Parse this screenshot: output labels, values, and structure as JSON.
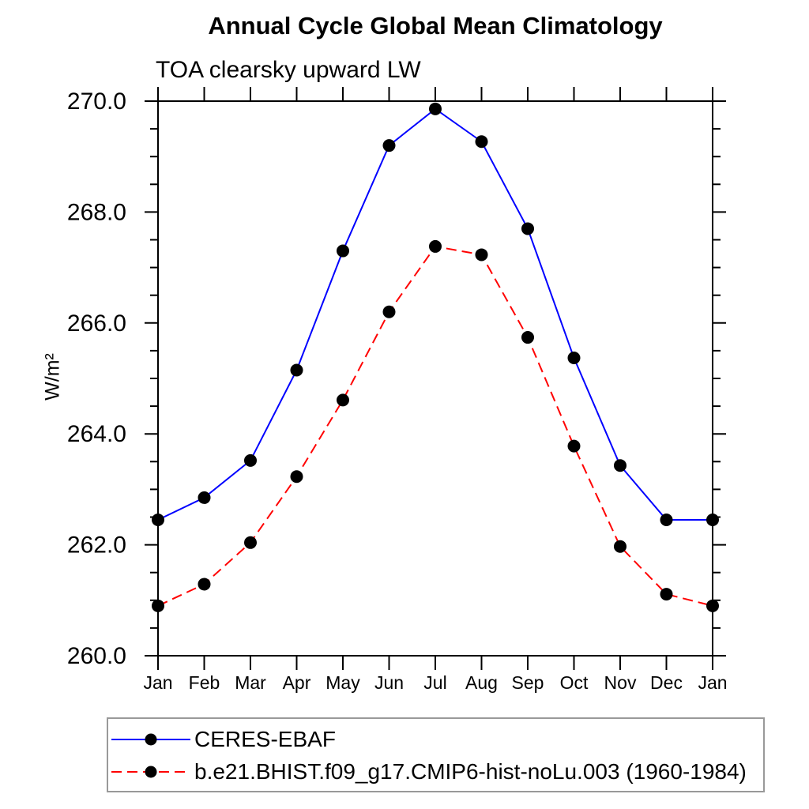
{
  "title": "Annual Cycle Global Mean Climatology",
  "subtitle": "TOA clearsky upward LW",
  "ylabel": "W/m²",
  "chart_data": {
    "type": "line",
    "title": "Annual Cycle Global Mean Climatology",
    "subtitle": "TOA clearsky upward LW",
    "ylabel": "W/m²",
    "categories": [
      "Jan",
      "Feb",
      "Mar",
      "Apr",
      "May",
      "Jun",
      "Jul",
      "Aug",
      "Sep",
      "Oct",
      "Nov",
      "Dec",
      "Jan"
    ],
    "ylim": [
      260.0,
      270.0
    ],
    "ytick_major": [
      260.0,
      262.0,
      264.0,
      266.0,
      268.0,
      270.0
    ],
    "ytick_major_labels": [
      "260.0",
      "262.0",
      "264.0",
      "266.0",
      "268.0",
      "270.0"
    ],
    "ytick_minor_step": 0.5,
    "grid": false,
    "legend_position": "bottom",
    "axis_color": "#000000",
    "series": [
      {
        "name": "CERES-EBAF",
        "color": "#0000ff",
        "line_style": "solid",
        "marker": "circle",
        "marker_color": "#000000",
        "values": [
          262.45,
          262.85,
          263.52,
          265.15,
          267.3,
          269.2,
          269.86,
          269.27,
          267.7,
          265.37,
          263.43,
          262.45,
          262.45
        ]
      },
      {
        "name": "b.e21.BHIST.f09_g17.CMIP6-hist-noLu.003 (1960-1984)",
        "color": "#ff0000",
        "line_style": "dashed",
        "marker": "circle",
        "marker_color": "#000000",
        "values": [
          260.9,
          261.29,
          262.04,
          263.23,
          264.61,
          266.2,
          267.38,
          267.23,
          265.74,
          263.78,
          261.97,
          261.11,
          260.9
        ]
      }
    ]
  }
}
